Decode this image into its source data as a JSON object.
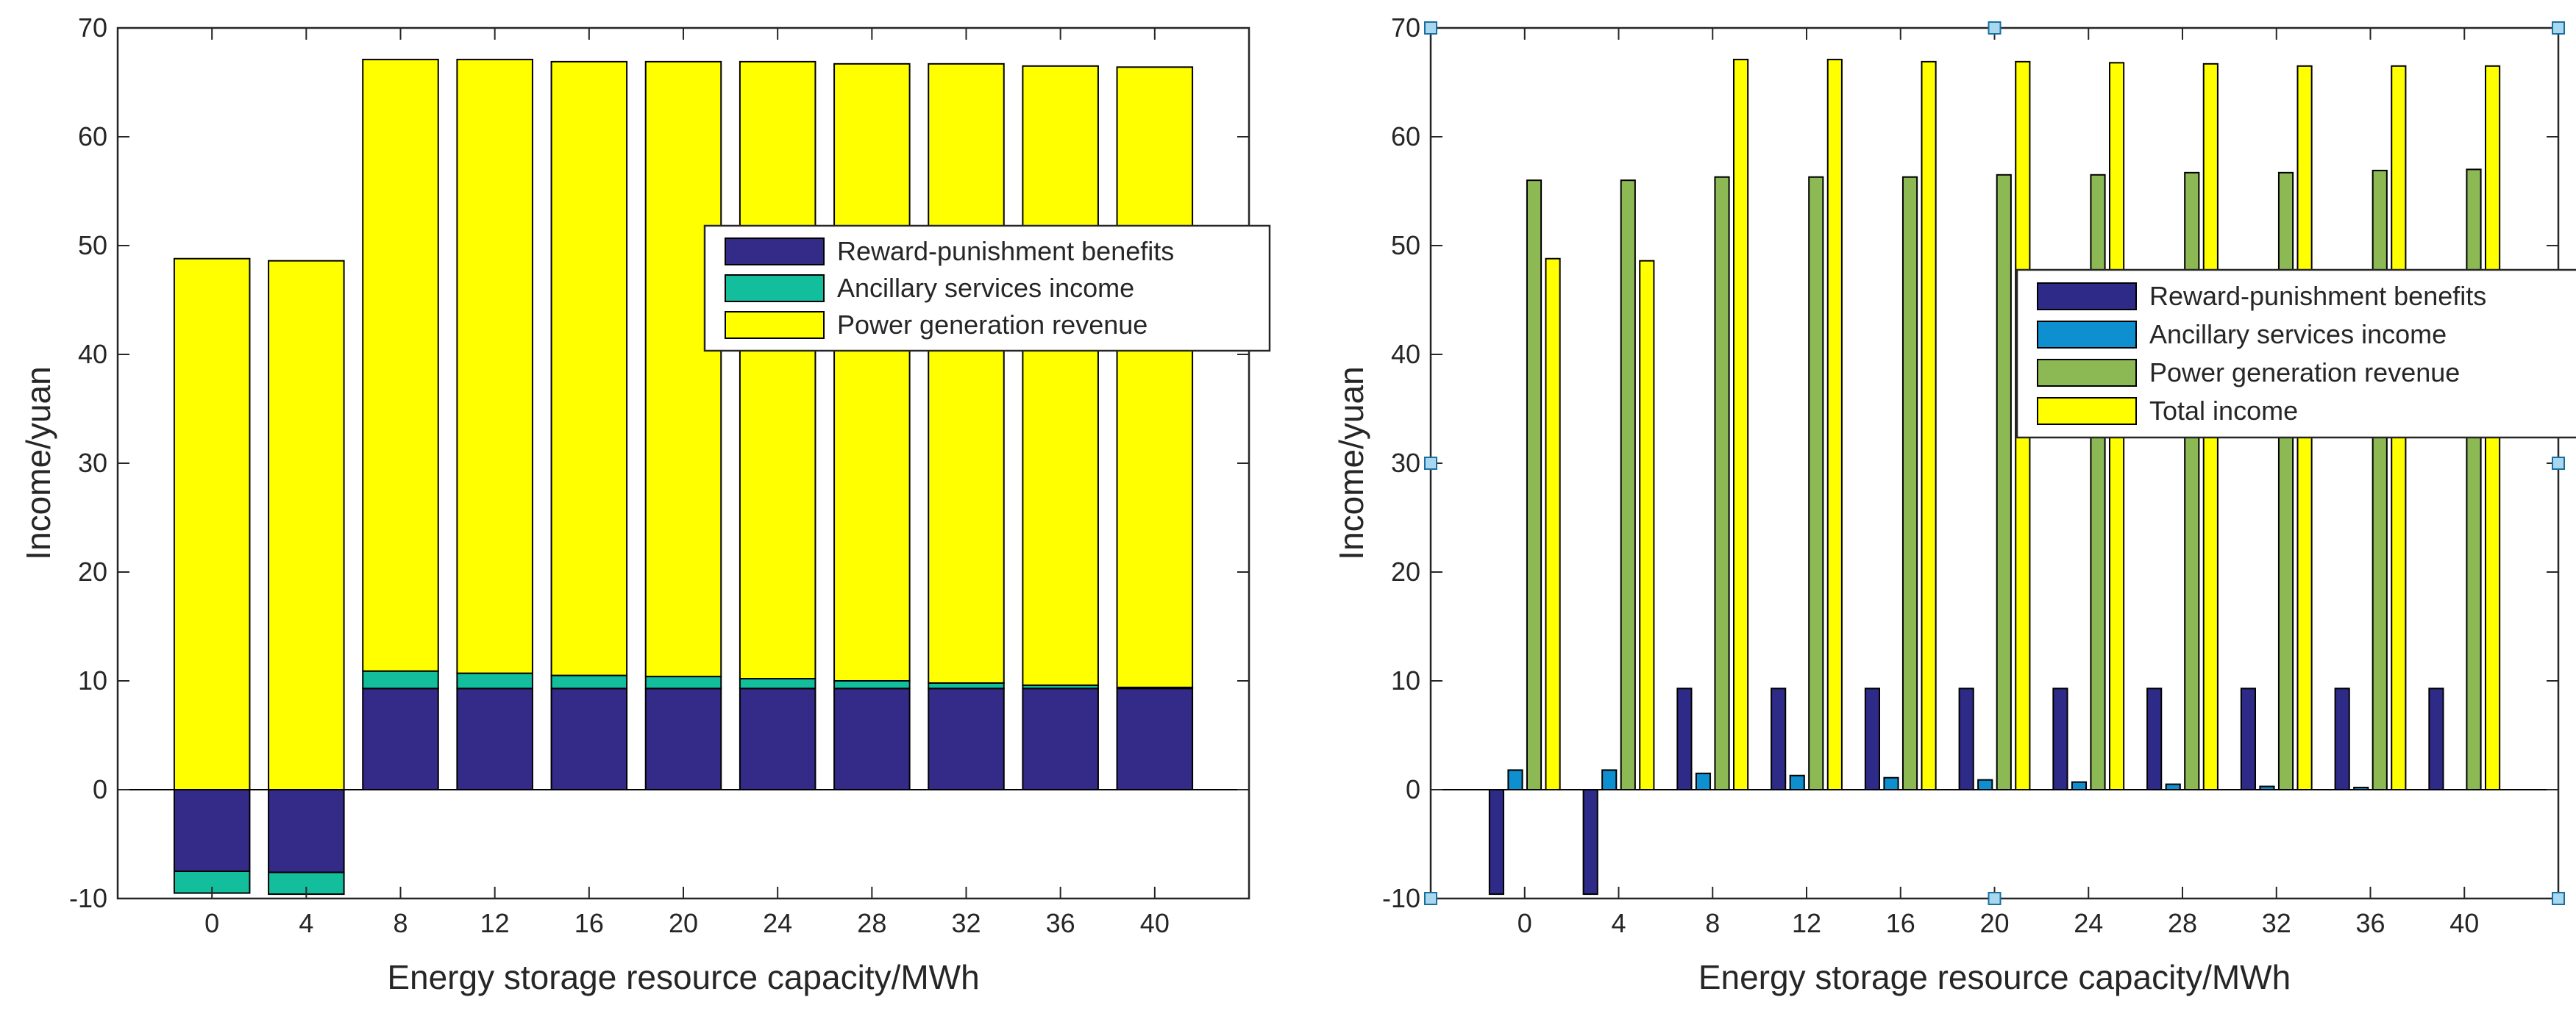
{
  "chart_data": [
    {
      "type": "bar",
      "subtype": "stacked",
      "categories": [
        "0",
        "4",
        "8",
        "12",
        "16",
        "20",
        "24",
        "28",
        "32",
        "36",
        "40"
      ],
      "series": [
        {
          "name": "Reward-punishment benefits",
          "color": "#342A87",
          "values": [
            -7.5,
            -7.6,
            9.3,
            9.3,
            9.3,
            9.3,
            9.3,
            9.3,
            9.3,
            9.3,
            9.3
          ]
        },
        {
          "name": "Ancillary services income",
          "color": "#13BE9D",
          "values": [
            -2.0,
            -2.0,
            1.6,
            1.4,
            1.2,
            1.1,
            0.9,
            0.7,
            0.5,
            0.3,
            0.1
          ]
        },
        {
          "name": "Power generation revenue",
          "color": "#FFFF00",
          "values": [
            48.8,
            48.6,
            56.2,
            56.4,
            56.4,
            56.5,
            56.7,
            56.7,
            56.9,
            56.9,
            57.0
          ]
        }
      ],
      "title": "",
      "xlabel": "Energy storage resource capacity/MWh",
      "ylabel": "Income/yuan",
      "ylim": [
        -10,
        70
      ],
      "yticks": [
        "-10",
        "0",
        "10",
        "20",
        "30",
        "40",
        "50",
        "60",
        "70"
      ],
      "grid": false,
      "legend_position": "center-right"
    },
    {
      "type": "bar",
      "subtype": "grouped",
      "categories": [
        "0",
        "4",
        "8",
        "12",
        "16",
        "20",
        "24",
        "28",
        "32",
        "36",
        "40"
      ],
      "series": [
        {
          "name": "Reward-punishment benefits",
          "color": "#2E2A87",
          "values": [
            -9.6,
            -9.6,
            9.3,
            9.3,
            9.3,
            9.3,
            9.3,
            9.3,
            9.3,
            9.3,
            9.3
          ]
        },
        {
          "name": "Ancillary services income",
          "color": "#0E8FCF",
          "values": [
            1.8,
            1.8,
            1.5,
            1.3,
            1.1,
            0.9,
            0.7,
            0.5,
            0.3,
            0.2,
            0.0
          ]
        },
        {
          "name": "Power generation revenue",
          "color": "#8DB955",
          "values": [
            56.0,
            56.0,
            56.3,
            56.3,
            56.3,
            56.5,
            56.5,
            56.7,
            56.7,
            56.9,
            57.0
          ]
        },
        {
          "name": "Total income",
          "color": "#FFFF00",
          "values": [
            48.8,
            48.6,
            67.1,
            67.1,
            66.9,
            66.9,
            66.8,
            66.7,
            66.5,
            66.5,
            66.5
          ]
        }
      ],
      "title": "",
      "xlabel": "Energy storage resource capacity/MWh",
      "ylabel": "Income/yuan",
      "ylim": [
        -10,
        70
      ],
      "yticks": [
        "-10",
        "0",
        "10",
        "20",
        "30",
        "40",
        "50",
        "60",
        "70"
      ],
      "grid": false,
      "legend_position": "center-right"
    }
  ]
}
